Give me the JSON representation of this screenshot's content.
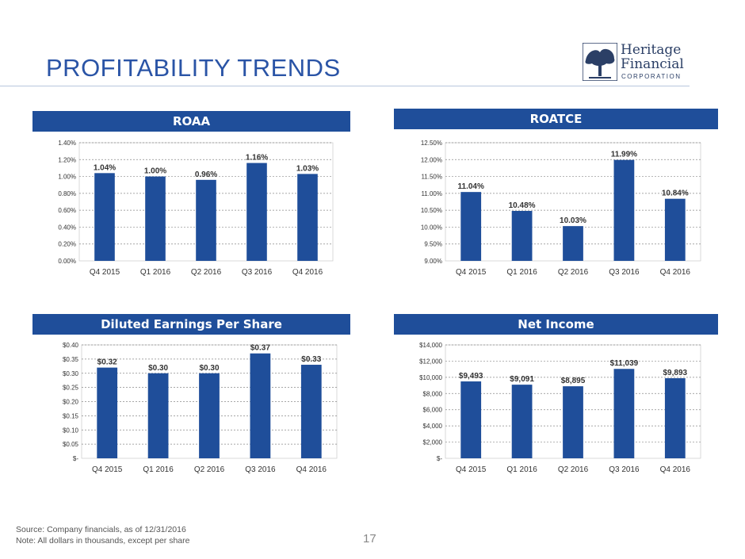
{
  "page": {
    "title": "PROFITABILITY TRENDS",
    "page_number": "17",
    "footnote_source": "Source: Company financials, as of 12/31/2016",
    "footnote_note": "Note: All dollars in thousands, except per share"
  },
  "logo": {
    "line1": "Heritage",
    "line2": "Financial",
    "line3": "CORPORATION",
    "icon": "tree-icon"
  },
  "colors": {
    "bar": "#1f4e9a",
    "header": "#1f4e9a",
    "title": "#2a54a6"
  },
  "chart_data": [
    {
      "id": "roaa",
      "type": "bar",
      "title": "ROAA",
      "categories": [
        "Q4 2015",
        "Q1 2016",
        "Q2 2016",
        "Q3 2016",
        "Q4 2016"
      ],
      "values": [
        1.04,
        1.0,
        0.96,
        1.16,
        1.03
      ],
      "value_labels": [
        "1.04%",
        "1.00%",
        "0.96%",
        "1.16%",
        "1.03%"
      ],
      "ylim": [
        0,
        1.4
      ],
      "yticks": [
        0,
        0.2,
        0.4,
        0.6,
        0.8,
        1.0,
        1.2,
        1.4
      ],
      "ytick_labels": [
        "0.00%",
        "0.20%",
        "0.40%",
        "0.60%",
        "0.80%",
        "1.00%",
        "1.20%",
        "1.40%"
      ],
      "grid": true
    },
    {
      "id": "roatce",
      "type": "bar",
      "title": "ROATCE",
      "categories": [
        "Q4 2015",
        "Q1 2016",
        "Q2 2016",
        "Q3 2016",
        "Q4 2016"
      ],
      "values": [
        11.04,
        10.48,
        10.03,
        11.99,
        10.84
      ],
      "value_labels": [
        "11.04%",
        "10.48%",
        "10.03%",
        "11.99%",
        "10.84%"
      ],
      "ylim": [
        9.0,
        12.5
      ],
      "yticks": [
        9.0,
        9.5,
        10.0,
        10.5,
        11.0,
        11.5,
        12.0,
        12.5
      ],
      "ytick_labels": [
        "9.00%",
        "9.50%",
        "10.00%",
        "10.50%",
        "11.00%",
        "11.50%",
        "12.00%",
        "12.50%"
      ],
      "grid": true
    },
    {
      "id": "eps",
      "type": "bar",
      "title": "Diluted Earnings Per Share",
      "categories": [
        "Q4 2015",
        "Q1 2016",
        "Q2 2016",
        "Q3 2016",
        "Q4 2016"
      ],
      "values": [
        0.32,
        0.3,
        0.3,
        0.37,
        0.33
      ],
      "value_labels": [
        "$0.32",
        "$0.30",
        "$0.30",
        "$0.37",
        "$0.33"
      ],
      "ylim": [
        0,
        0.4
      ],
      "yticks": [
        0,
        0.05,
        0.1,
        0.15,
        0.2,
        0.25,
        0.3,
        0.35,
        0.4
      ],
      "ytick_labels": [
        "$-",
        "$0.05",
        "$0.10",
        "$0.15",
        "$0.20",
        "$0.25",
        "$0.30",
        "$0.35",
        "$0.40"
      ],
      "grid": true
    },
    {
      "id": "net-income",
      "type": "bar",
      "title": "Net Income",
      "categories": [
        "Q4 2015",
        "Q1 2016",
        "Q2 2016",
        "Q3 2016",
        "Q4 2016"
      ],
      "values": [
        9493,
        9091,
        8895,
        11039,
        9893
      ],
      "value_labels": [
        "$9,493",
        "$9,091",
        "$8,895",
        "$11,039",
        "$9,893"
      ],
      "ylim": [
        0,
        14000
      ],
      "yticks": [
        0,
        2000,
        4000,
        6000,
        8000,
        10000,
        12000,
        14000
      ],
      "ytick_labels": [
        "$-",
        "$2,000",
        "$4,000",
        "$6,000",
        "$8,000",
        "$10,000",
        "$12,000",
        "$14,000"
      ],
      "grid": true
    }
  ]
}
